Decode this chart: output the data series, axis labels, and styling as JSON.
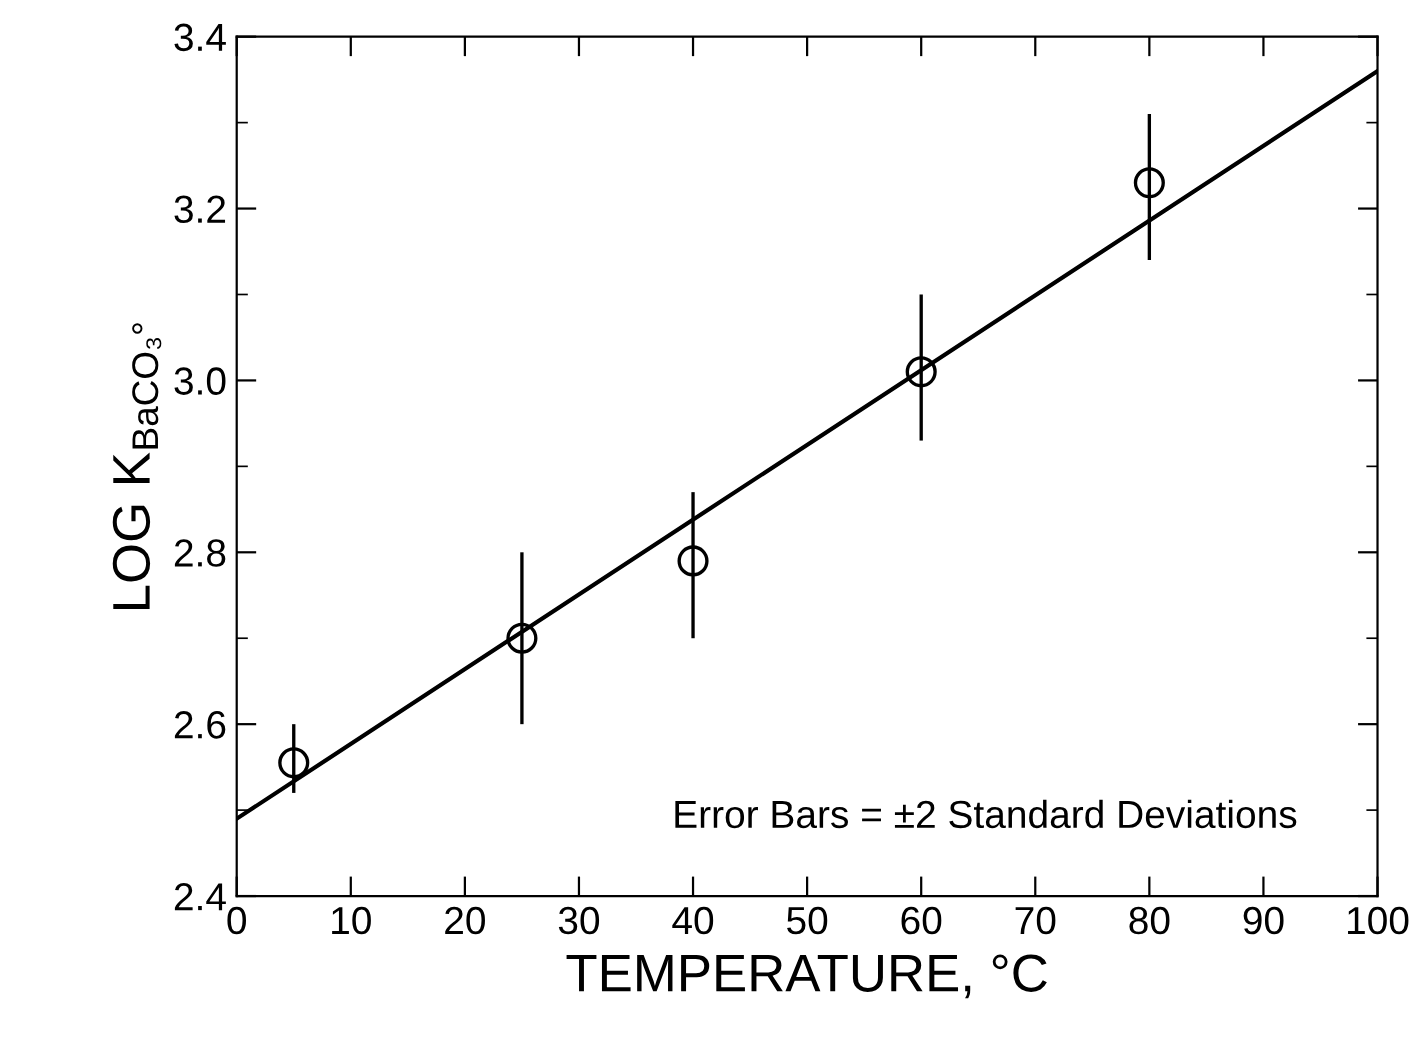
{
  "chart_data": {
    "type": "scatter",
    "xlabel": "TEMPERATURE, °C",
    "ylabel": "LOG K$_{BaCO₃°}$",
    "annotations": [
      "Error Bars = ±2 Standard Deviations"
    ],
    "series": [
      {
        "color": "#000000",
        "marker": "circle",
        "x": [
          5,
          25,
          40,
          60,
          80
        ],
        "values": [
          2.555,
          2.7,
          2.79,
          3.01,
          3.23
        ],
        "errors": [
          [
            2.52,
            2.6
          ],
          [
            2.6,
            2.8
          ],
          [
            2.7,
            2.87
          ],
          [
            2.93,
            3.1
          ],
          [
            3.14,
            3.31
          ]
        ]
      },
      {
        "type": "line",
        "color": "#000000",
        "marker": "none",
        "line_style": "solid",
        "x": [
          0,
          100
        ],
        "values": [
          2.49,
          3.36
        ]
      }
    ],
    "xlim": [
      0,
      100
    ],
    "xticks": [
      0,
      10,
      20,
      30,
      40,
      50,
      60,
      70,
      80,
      90,
      100
    ],
    "ylim": [
      2.4,
      3.4
    ],
    "yticks": [
      2.4,
      2.6,
      2.8,
      {
        "value": 3.0,
        "label": "3.0"
      },
      3.2,
      3.4
    ],
    "grid": false,
    "legend": false
  }
}
